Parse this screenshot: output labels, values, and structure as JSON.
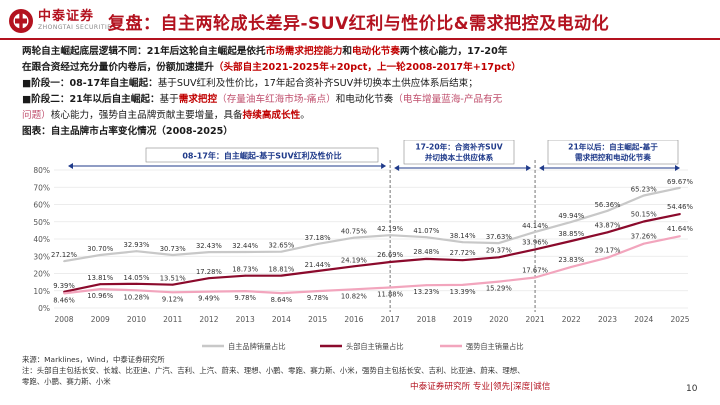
{
  "header": {
    "logo_cn": "中泰证券",
    "logo_en": "ZHONGTAI SECURITIES",
    "title": "复盘：自主两轮成长差异-SUV红利与性价比&需求把控及电动化"
  },
  "body": {
    "p1_a": "两轮自主崛起底层逻辑不同：21年后这轮自主崛起是依托",
    "p1_b": "市场需求把控能力",
    "p1_c": "和",
    "p1_d": "电动化节奏",
    "p1_e": "两个核心能力，17-20年",
    "p2_a": "在跟合资经过充分量价内卷后，份额加速提升",
    "p2_b": "（头部自主2021-2025年+20pct，上一轮2008-2017年+17pct）",
    "p3_a": "■阶段一：08-17年自主崛起：",
    "p3_b": "基于SUV红利及性价比，17年起合资补齐SUV并切换本土供应体系后结束；",
    "p4_a": "■阶段二：21年以后自主崛起：",
    "p4_b": "基于",
    "p4_c": "需求把控",
    "p4_d": "（存量油车红海市场-痛点）",
    "p4_e": "和电动化节奏",
    "p4_f": "（电车增量蓝海-产品有无",
    "p5_a": "问题）",
    "p5_b": "核心能力，强势自主品牌贡献主要增量，具备",
    "p5_c": "持续高成长性",
    "p5_d": "。",
    "p6": "图表：自主品牌市占率变化情况（2008-2025）"
  },
  "chart_data": {
    "type": "line",
    "x": [
      "2008",
      "2009",
      "2010",
      "2011",
      "2012",
      "2013",
      "2014",
      "2015",
      "2016",
      "2017",
      "2018",
      "2019",
      "2020",
      "2021",
      "2022",
      "2023",
      "2024",
      "2025"
    ],
    "y_ticks": [
      "0%",
      "10%",
      "20%",
      "30%",
      "40%",
      "50%",
      "60%",
      "70%",
      "80%"
    ],
    "ylim": [
      0,
      80
    ],
    "series": [
      {
        "name": "自主品牌销量占比",
        "color": "#c8c8c8",
        "values": [
          27.12,
          30.7,
          32.93,
          30.73,
          32.43,
          32.44,
          32.65,
          37.18,
          40.75,
          42.19,
          41.07,
          38.14,
          37.63,
          44.14,
          49.94,
          56.36,
          65.23,
          69.67
        ],
        "labels": [
          "27.12%",
          "30.70%",
          "32.93%",
          "30.73%",
          "32.43%",
          "32.44%",
          "32.65%",
          "37.18%",
          "40.75%",
          "42.19%",
          "41.07%",
          "38.14%",
          "37.63%",
          "44.14%",
          "49.94%",
          "56.36%",
          "65.23%",
          "69.67%"
        ]
      },
      {
        "name": "头部自主销量占比",
        "color": "#8b0a2c",
        "values": [
          9.39,
          13.81,
          14.05,
          13.51,
          17.28,
          18.73,
          18.81,
          21.44,
          24.19,
          26.69,
          28.48,
          27.72,
          29.37,
          33.96,
          38.85,
          43.87,
          50.15,
          54.46
        ],
        "labels": [
          "9.39%",
          "13.81%",
          "14.05%",
          "13.51%",
          "17.28%",
          "18.73%",
          "18.81%",
          "21.44%",
          "24.19%",
          "26.69%",
          "28.48%",
          "27.72%",
          "29.37%",
          "33.96%",
          "38.85%",
          "43.87%",
          "50.15%",
          "54.46%"
        ]
      },
      {
        "name": "强势自主销量占比",
        "color": "#f2a5bd",
        "values": [
          8.46,
          10.96,
          10.28,
          9.12,
          9.49,
          9.78,
          8.64,
          9.78,
          10.82,
          11.88,
          13.23,
          13.39,
          15.29,
          17.67,
          23.83,
          29.17,
          37.26,
          41.64
        ],
        "labels": [
          "8.46%",
          "10.96%",
          "10.28%",
          "9.12%",
          "9.49%",
          "9.78%",
          "8.64%",
          "9.78%",
          "10.82%",
          "11.88%",
          "13.23%",
          "13.39%",
          "15.29%",
          "17.67%",
          "23.83%",
          "29.17%",
          "37.26%",
          "41.64%"
        ]
      }
    ],
    "annotations": [
      {
        "text": "08-17年：自主崛起-基于SUV红利及性价比",
        "from": "2008",
        "to": "2017"
      },
      {
        "text_line1": "17-20年：合资补齐SUV",
        "text_line2": "并切换本土供应体系",
        "from": "2017",
        "to": "2021"
      },
      {
        "text_line1": "21年以后：自主崛起-基于",
        "text_line2": "需求把控和电动化节奏",
        "from": "2021",
        "to": "2025"
      }
    ],
    "dividers": [
      "2017",
      "2021"
    ],
    "legend": "bottom"
  },
  "footer": {
    "source": "来源：Marklines，Wind，中泰证券研究所",
    "note_1": "注：头部自主包括长安、长城、比亚迪、广汽、吉利、上汽、蔚来、理想、小鹏、零跑、赛力斯、小米，强势自主包括长安、吉利、比亚迪、蔚来、理想、",
    "note_2": "零跑、小鹏、赛力斯、小米",
    "brand": "中泰证券研究所 专业|领先|深度|诚信",
    "page": "10"
  }
}
